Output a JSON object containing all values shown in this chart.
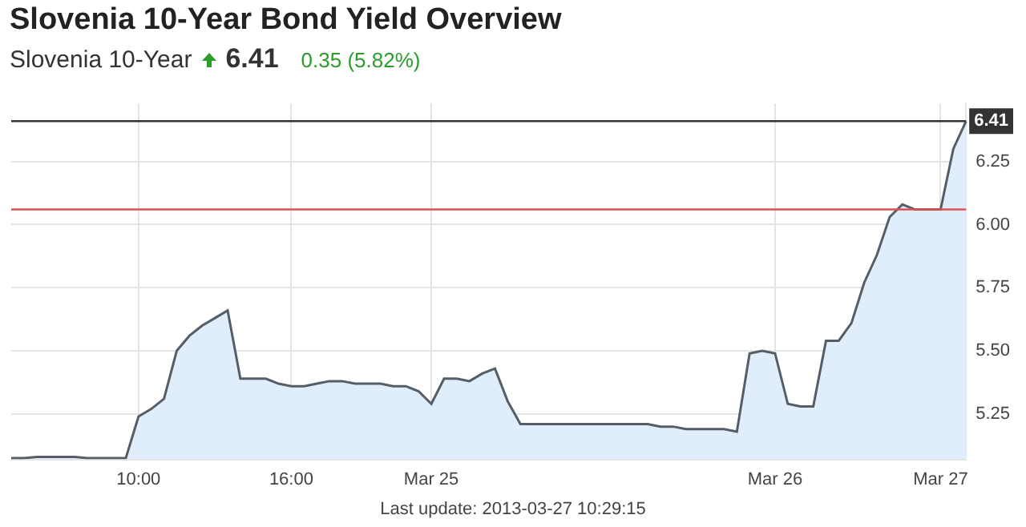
{
  "chart_data": {
    "type": "area",
    "title": "Slovenia 10-Year Bond Yield Overview",
    "subtitle": "Slovenia 10-Year",
    "annotations": [
      "6.41",
      "0.35 (5.82%)",
      "Last update: 2013-03-27 10:29:15"
    ],
    "categories": [
      null,
      null,
      null,
      null,
      null,
      null,
      null,
      null,
      null,
      null,
      "10:00",
      null,
      null,
      null,
      null,
      null,
      null,
      null,
      null,
      null,
      null,
      null,
      "16:00",
      null,
      null,
      null,
      null,
      null,
      null,
      null,
      null,
      null,
      null,
      "Mar 25",
      null,
      null,
      null,
      null,
      null,
      null,
      null,
      null,
      null,
      null,
      null,
      null,
      null,
      null,
      null,
      null,
      null,
      null,
      null,
      null,
      null,
      null,
      null,
      null,
      null,
      null,
      "Mar 26",
      null,
      null,
      null,
      null,
      null,
      null,
      null,
      null,
      null,
      null,
      null,
      null,
      "Mar 27",
      null,
      null
    ],
    "series": [
      {
        "color": "#555d66",
        "values": [
          5.075,
          5.075,
          5.08,
          5.08,
          5.08,
          5.08,
          5.075,
          5.075,
          5.075,
          5.075,
          5.24,
          5.27,
          5.31,
          5.5,
          5.56,
          5.6,
          5.63,
          5.66,
          5.39,
          5.39,
          5.39,
          5.37,
          5.36,
          5.36,
          5.37,
          5.38,
          5.38,
          5.37,
          5.37,
          5.37,
          5.36,
          5.36,
          5.34,
          5.29,
          5.39,
          5.39,
          5.38,
          5.41,
          5.43,
          5.3,
          5.21,
          5.21,
          5.21,
          5.21,
          5.21,
          5.21,
          5.21,
          5.21,
          5.21,
          5.21,
          5.21,
          5.2,
          5.2,
          5.19,
          5.19,
          5.19,
          5.19,
          5.18,
          5.49,
          5.5,
          5.49,
          5.29,
          5.28,
          5.28,
          5.54,
          5.54,
          5.61,
          5.77,
          5.88,
          6.03,
          6.08,
          6.06,
          6.06,
          6.06,
          6.3,
          6.41
        ]
      }
    ],
    "ylim": [
      5.07,
      6.48
    ],
    "yticks": [
      5.25,
      {
        "value": 5.5,
        "label": "5.50"
      },
      5.75,
      {
        "value": 6,
        "label": "6.00"
      },
      6.25
    ],
    "ref_lines": [
      {
        "axis": "y",
        "value": 6.41,
        "label": "6.41",
        "color": "#333333"
      },
      {
        "axis": "y",
        "value": 6.06,
        "color": "#d9534f"
      }
    ],
    "grid": true,
    "legend": false
  }
}
